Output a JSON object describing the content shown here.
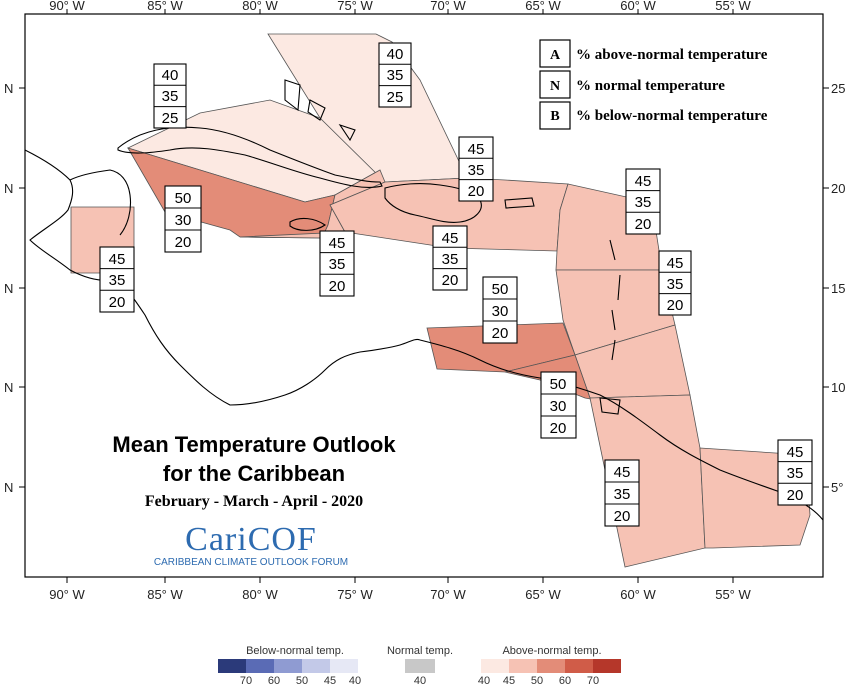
{
  "axes": {
    "lon_labels": [
      "90° W",
      "85° W",
      "80° W",
      "75° W",
      "70° W",
      "65° W",
      "60° W",
      "55° W"
    ],
    "lat_labels_left": [
      "N",
      "N",
      "N",
      "N",
      "N"
    ],
    "lat_labels_right": [
      "25",
      "20",
      "15",
      "10",
      "5°"
    ]
  },
  "legend": [
    {
      "letter": "A",
      "text": "% above-normal temperature"
    },
    {
      "letter": "N",
      "text": "% normal temperature"
    },
    {
      "letter": "B",
      "text": "% below-normal temperature"
    }
  ],
  "regions": [
    {
      "id": "western-cuba",
      "A": "40",
      "N": "35",
      "B": "25",
      "fill": "#fce9e2"
    },
    {
      "id": "bahamas",
      "A": "40",
      "N": "35",
      "B": "25",
      "fill": "#fce9e2"
    },
    {
      "id": "cayman-jamaica",
      "A": "50",
      "N": "30",
      "B": "20",
      "fill": "#e38c78"
    },
    {
      "id": "belize",
      "A": "45",
      "N": "35",
      "B": "20",
      "fill": "#f6c2b4"
    },
    {
      "id": "jamaica-south",
      "A": "45",
      "N": "35",
      "B": "20",
      "fill": "#f6c2b4"
    },
    {
      "id": "hispaniola",
      "A": "45",
      "N": "35",
      "B": "20",
      "fill": "#f6c2b4"
    },
    {
      "id": "turks-pr",
      "A": "45",
      "N": "35",
      "B": "20",
      "fill": "#f6c2b4"
    },
    {
      "id": "leeward",
      "A": "45",
      "N": "35",
      "B": "20",
      "fill": "#f6c2b4"
    },
    {
      "id": "windward",
      "A": "45",
      "N": "35",
      "B": "20",
      "fill": "#f6c2b4"
    },
    {
      "id": "abc-islands",
      "A": "50",
      "N": "30",
      "B": "20",
      "fill": "#e38c78"
    },
    {
      "id": "trinidad",
      "A": "50",
      "N": "30",
      "B": "20",
      "fill": "#e38c78"
    },
    {
      "id": "guyana",
      "A": "45",
      "N": "35",
      "B": "20",
      "fill": "#f6c2b4"
    },
    {
      "id": "suriname",
      "A": "45",
      "N": "35",
      "B": "20",
      "fill": "#f6c2b4"
    }
  ],
  "title": {
    "line1": "Mean Temperature Outlook",
    "line2": "for the Caribbean",
    "period": "February - March - April - 2020"
  },
  "logo": {
    "name": "CariCOF",
    "subtitle": "CARIBBEAN CLIMATE OUTLOOK FORUM"
  },
  "color_scale": {
    "below": {
      "label": "Below-normal temp.",
      "ticks": [
        "70",
        "60",
        "50",
        "45",
        "40"
      ],
      "colors": [
        "#2b3a7a",
        "#5a6bb5",
        "#8f9bd2",
        "#c3c9e8",
        "#e6e8f5"
      ]
    },
    "normal": {
      "label": "Normal temp.",
      "ticks": [
        "40"
      ],
      "colors": [
        "#c8c8c8"
      ]
    },
    "above": {
      "label": "Above-normal temp.",
      "ticks": [
        "40",
        "45",
        "50",
        "60",
        "70"
      ],
      "colors": [
        "#fce9e2",
        "#f6c2b4",
        "#e38c78",
        "#d05c48",
        "#b5372a"
      ]
    }
  }
}
